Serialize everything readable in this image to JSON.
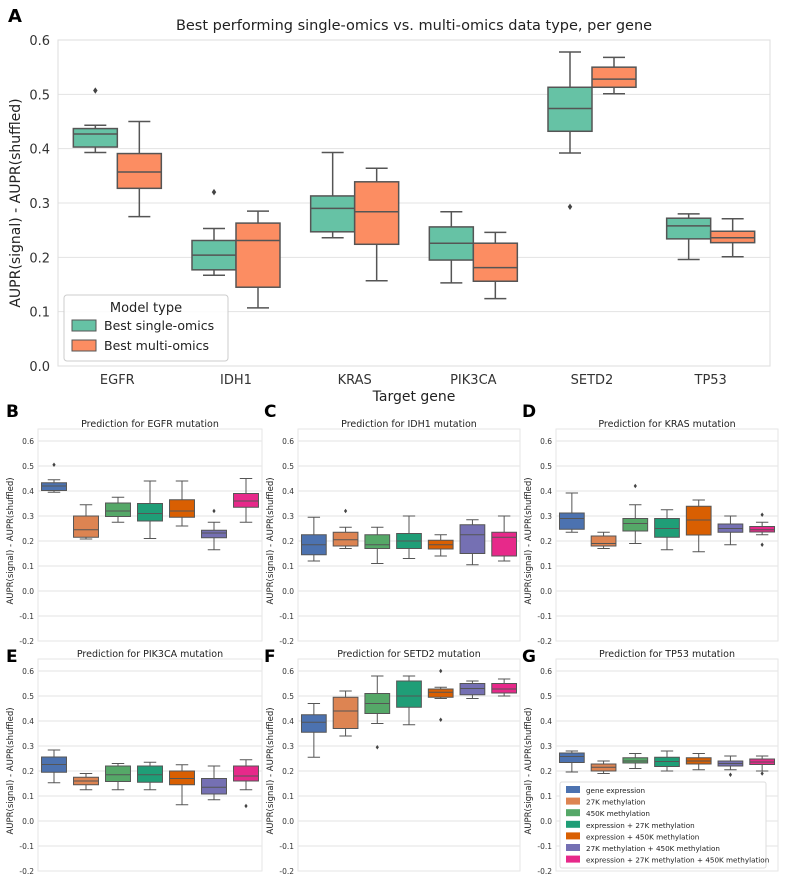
{
  "chart_data": [
    {
      "panel": "A",
      "type": "boxplot",
      "title": "Best performing single-omics vs. multi-omics data type, per gene",
      "xlabel": "Target gene",
      "ylabel": "AUPR(signal) - AUPR(shuffled)",
      "ylim": [
        0.0,
        0.6
      ],
      "yticks": [
        "0.0",
        "0.1",
        "0.2",
        "0.3",
        "0.4",
        "0.5",
        "0.6"
      ],
      "categories": [
        "EGFR",
        "IDH1",
        "KRAS",
        "PIK3CA",
        "SETD2",
        "TP53"
      ],
      "legend": {
        "title": "Model type",
        "position": "lower-left",
        "items": [
          {
            "label": "Best single-omics",
            "color": "#66c2a5"
          },
          {
            "label": "Best multi-omics",
            "color": "#fc8d62"
          }
        ]
      },
      "series": [
        {
          "name": "Best single-omics",
          "color": "#66c2a5",
          "boxes": [
            {
              "min": 0.393,
              "q1": 0.403,
              "med": 0.427,
              "q3": 0.437,
              "max": 0.443,
              "outliers": [
                0.507
              ]
            },
            {
              "min": 0.167,
              "q1": 0.177,
              "med": 0.204,
              "q3": 0.231,
              "max": 0.253,
              "outliers": [
                0.32
              ]
            },
            {
              "min": 0.236,
              "q1": 0.247,
              "med": 0.29,
              "q3": 0.313,
              "max": 0.393,
              "outliers": []
            },
            {
              "min": 0.153,
              "q1": 0.195,
              "med": 0.226,
              "q3": 0.256,
              "max": 0.284,
              "outliers": []
            },
            {
              "min": 0.392,
              "q1": 0.432,
              "med": 0.474,
              "q3": 0.513,
              "max": 0.578,
              "outliers": [
                0.293
              ]
            },
            {
              "min": 0.196,
              "q1": 0.234,
              "med": 0.258,
              "q3": 0.272,
              "max": 0.28,
              "outliers": []
            }
          ]
        },
        {
          "name": "Best multi-omics",
          "color": "#fc8d62",
          "boxes": [
            {
              "min": 0.275,
              "q1": 0.327,
              "med": 0.357,
              "q3": 0.391,
              "max": 0.45,
              "outliers": []
            },
            {
              "min": 0.107,
              "q1": 0.145,
              "med": 0.231,
              "q3": 0.263,
              "max": 0.285,
              "outliers": []
            },
            {
              "min": 0.157,
              "q1": 0.224,
              "med": 0.284,
              "q3": 0.339,
              "max": 0.364,
              "outliers": []
            },
            {
              "min": 0.124,
              "q1": 0.156,
              "med": 0.181,
              "q3": 0.226,
              "max": 0.246,
              "outliers": []
            },
            {
              "min": 0.501,
              "q1": 0.513,
              "med": 0.528,
              "q3": 0.55,
              "max": 0.568,
              "outliers": []
            },
            {
              "min": 0.201,
              "q1": 0.227,
              "med": 0.236,
              "q3": 0.248,
              "max": 0.271,
              "outliers": []
            }
          ]
        }
      ]
    },
    {
      "panel": "B",
      "type": "boxplot",
      "title": "Prediction for EGFR mutation",
      "ylabel": "AUPR(signal) - AUPR(shuffled)",
      "ylim": [
        -0.2,
        0.6
      ],
      "yticks": [
        "-0.2",
        "-0.1",
        "0.0",
        "0.1",
        "0.2",
        "0.3",
        "0.4",
        "0.5",
        "0.6"
      ],
      "boxes": [
        {
          "min": 0.395,
          "q1": 0.402,
          "med": 0.42,
          "q3": 0.433,
          "max": 0.445,
          "outliers": [
            0.505
          ]
        },
        {
          "min": 0.208,
          "q1": 0.215,
          "med": 0.245,
          "q3": 0.3,
          "max": 0.345,
          "outliers": []
        },
        {
          "min": 0.275,
          "q1": 0.298,
          "med": 0.32,
          "q3": 0.352,
          "max": 0.375,
          "outliers": []
        },
        {
          "min": 0.21,
          "q1": 0.28,
          "med": 0.31,
          "q3": 0.35,
          "max": 0.44,
          "outliers": []
        },
        {
          "min": 0.26,
          "q1": 0.295,
          "med": 0.32,
          "q3": 0.365,
          "max": 0.44,
          "outliers": []
        },
        {
          "min": 0.165,
          "q1": 0.213,
          "med": 0.232,
          "q3": 0.243,
          "max": 0.275,
          "outliers": [
            0.32
          ]
        },
        {
          "min": 0.275,
          "q1": 0.335,
          "med": 0.36,
          "q3": 0.39,
          "max": 0.45,
          "outliers": []
        }
      ]
    },
    {
      "panel": "C",
      "type": "boxplot",
      "title": "Prediction for IDH1 mutation",
      "ylabel": "AUPR(signal) - AUPR(shuffled)",
      "ylim": [
        -0.2,
        0.6
      ],
      "yticks": [
        "-0.2",
        "-0.1",
        "0.0",
        "0.1",
        "0.2",
        "0.3",
        "0.4",
        "0.5",
        "0.6"
      ],
      "boxes": [
        {
          "min": 0.12,
          "q1": 0.145,
          "med": 0.185,
          "q3": 0.225,
          "max": 0.295,
          "outliers": []
        },
        {
          "min": 0.17,
          "q1": 0.18,
          "med": 0.205,
          "q3": 0.235,
          "max": 0.255,
          "outliers": [
            0.32
          ]
        },
        {
          "min": 0.11,
          "q1": 0.17,
          "med": 0.185,
          "q3": 0.225,
          "max": 0.255,
          "outliers": []
        },
        {
          "min": 0.13,
          "q1": 0.17,
          "med": 0.2,
          "q3": 0.23,
          "max": 0.3,
          "outliers": []
        },
        {
          "min": 0.14,
          "q1": 0.168,
          "med": 0.185,
          "q3": 0.203,
          "max": 0.225,
          "outliers": []
        },
        {
          "min": 0.105,
          "q1": 0.15,
          "med": 0.225,
          "q3": 0.265,
          "max": 0.285,
          "outliers": []
        },
        {
          "min": 0.12,
          "q1": 0.14,
          "med": 0.215,
          "q3": 0.235,
          "max": 0.3,
          "outliers": []
        }
      ]
    },
    {
      "panel": "D",
      "type": "boxplot",
      "title": "Prediction for KRAS mutation",
      "ylabel": "AUPR(signal) - AUPR(shuffled)",
      "ylim": [
        -0.2,
        0.6
      ],
      "yticks": [
        "-0.2",
        "-0.1",
        "0.0",
        "0.1",
        "0.2",
        "0.3",
        "0.4",
        "0.5",
        "0.6"
      ],
      "boxes": [
        {
          "min": 0.235,
          "q1": 0.247,
          "med": 0.29,
          "q3": 0.312,
          "max": 0.392,
          "outliers": []
        },
        {
          "min": 0.17,
          "q1": 0.18,
          "med": 0.19,
          "q3": 0.22,
          "max": 0.235,
          "outliers": []
        },
        {
          "min": 0.19,
          "q1": 0.24,
          "med": 0.27,
          "q3": 0.29,
          "max": 0.345,
          "outliers": [
            0.42
          ]
        },
        {
          "min": 0.165,
          "q1": 0.215,
          "med": 0.25,
          "q3": 0.29,
          "max": 0.325,
          "outliers": []
        },
        {
          "min": 0.157,
          "q1": 0.224,
          "med": 0.284,
          "q3": 0.339,
          "max": 0.364,
          "outliers": []
        },
        {
          "min": 0.185,
          "q1": 0.235,
          "med": 0.25,
          "q3": 0.268,
          "max": 0.3,
          "outliers": []
        },
        {
          "min": 0.225,
          "q1": 0.236,
          "med": 0.245,
          "q3": 0.258,
          "max": 0.275,
          "outliers": [
            0.305,
            0.185
          ]
        }
      ]
    },
    {
      "panel": "E",
      "type": "boxplot",
      "title": "Prediction for PIK3CA mutation",
      "ylabel": "AUPR(signal) - AUPR(shuffled)",
      "ylim": [
        -0.2,
        0.6
      ],
      "yticks": [
        "-0.2",
        "-0.1",
        "0.0",
        "0.1",
        "0.2",
        "0.3",
        "0.4",
        "0.5",
        "0.6"
      ],
      "boxes": [
        {
          "min": 0.153,
          "q1": 0.195,
          "med": 0.226,
          "q3": 0.256,
          "max": 0.284,
          "outliers": []
        },
        {
          "min": 0.125,
          "q1": 0.145,
          "med": 0.16,
          "q3": 0.175,
          "max": 0.19,
          "outliers": []
        },
        {
          "min": 0.125,
          "q1": 0.158,
          "med": 0.185,
          "q3": 0.22,
          "max": 0.23,
          "outliers": []
        },
        {
          "min": 0.125,
          "q1": 0.155,
          "med": 0.185,
          "q3": 0.22,
          "max": 0.235,
          "outliers": []
        },
        {
          "min": 0.065,
          "q1": 0.145,
          "med": 0.17,
          "q3": 0.2,
          "max": 0.225,
          "outliers": []
        },
        {
          "min": 0.085,
          "q1": 0.108,
          "med": 0.135,
          "q3": 0.17,
          "max": 0.22,
          "outliers": []
        },
        {
          "min": 0.125,
          "q1": 0.16,
          "med": 0.18,
          "q3": 0.22,
          "max": 0.245,
          "outliers": [
            0.06
          ]
        }
      ]
    },
    {
      "panel": "F",
      "type": "boxplot",
      "title": "Prediction for SETD2 mutation",
      "ylabel": "AUPR(signal) - AUPR(shuffled)",
      "ylim": [
        -0.2,
        0.6
      ],
      "yticks": [
        "-0.2",
        "-0.1",
        "0.0",
        "0.1",
        "0.2",
        "0.3",
        "0.4",
        "0.5",
        "0.6"
      ],
      "boxes": [
        {
          "min": 0.255,
          "q1": 0.355,
          "med": 0.395,
          "q3": 0.425,
          "max": 0.47,
          "outliers": []
        },
        {
          "min": 0.34,
          "q1": 0.37,
          "med": 0.44,
          "q3": 0.495,
          "max": 0.52,
          "outliers": []
        },
        {
          "min": 0.39,
          "q1": 0.43,
          "med": 0.47,
          "q3": 0.51,
          "max": 0.58,
          "outliers": [
            0.295
          ]
        },
        {
          "min": 0.385,
          "q1": 0.455,
          "med": 0.5,
          "q3": 0.56,
          "max": 0.58,
          "outliers": []
        },
        {
          "min": 0.49,
          "q1": 0.495,
          "med": 0.515,
          "q3": 0.528,
          "max": 0.535,
          "outliers": [
            0.6,
            0.405
          ]
        },
        {
          "min": 0.49,
          "q1": 0.505,
          "med": 0.53,
          "q3": 0.55,
          "max": 0.56,
          "outliers": []
        },
        {
          "min": 0.5,
          "q1": 0.512,
          "med": 0.528,
          "q3": 0.55,
          "max": 0.568,
          "outliers": []
        }
      ]
    },
    {
      "panel": "G",
      "type": "boxplot",
      "title": "Prediction for TP53 mutation",
      "ylabel": "AUPR(signal) - AUPR(shuffled)",
      "ylim": [
        -0.2,
        0.6
      ],
      "yticks": [
        "-0.2",
        "-0.1",
        "0.0",
        "0.1",
        "0.2",
        "0.3",
        "0.4",
        "0.5",
        "0.6"
      ],
      "boxes": [
        {
          "min": 0.196,
          "q1": 0.234,
          "med": 0.258,
          "q3": 0.272,
          "max": 0.28,
          "outliers": []
        },
        {
          "min": 0.19,
          "q1": 0.2,
          "med": 0.215,
          "q3": 0.228,
          "max": 0.24,
          "outliers": []
        },
        {
          "min": 0.21,
          "q1": 0.232,
          "med": 0.24,
          "q3": 0.253,
          "max": 0.27,
          "outliers": []
        },
        {
          "min": 0.2,
          "q1": 0.218,
          "med": 0.238,
          "q3": 0.255,
          "max": 0.28,
          "outliers": []
        },
        {
          "min": 0.205,
          "q1": 0.228,
          "med": 0.24,
          "q3": 0.253,
          "max": 0.27,
          "outliers": []
        },
        {
          "min": 0.205,
          "q1": 0.22,
          "med": 0.23,
          "q3": 0.24,
          "max": 0.26,
          "outliers": [
            0.185
          ]
        },
        {
          "min": 0.2,
          "q1": 0.226,
          "med": 0.236,
          "q3": 0.248,
          "max": 0.26,
          "outliers": [
            0.19
          ]
        }
      ]
    }
  ],
  "small_multiples": {
    "box_colors": [
      "#4c72b0",
      "#dd8452",
      "#55a868",
      "#1f9e77",
      "#d95f02",
      "#7570b3",
      "#e7298a"
    ],
    "legend": [
      {
        "label": "gene expression",
        "color": "#4c72b0"
      },
      {
        "label": "27K methylation",
        "color": "#dd8452"
      },
      {
        "label": "450K methylation",
        "color": "#55a868"
      },
      {
        "label": "expression + 27K methylation",
        "color": "#1f9e77"
      },
      {
        "label": "expression + 450K methylation",
        "color": "#d95f02"
      },
      {
        "label": "27K methylation + 450K methylation",
        "color": "#7570b3"
      },
      {
        "label": "expression + 27K methylation + 450K methylation",
        "color": "#e7298a"
      }
    ]
  }
}
